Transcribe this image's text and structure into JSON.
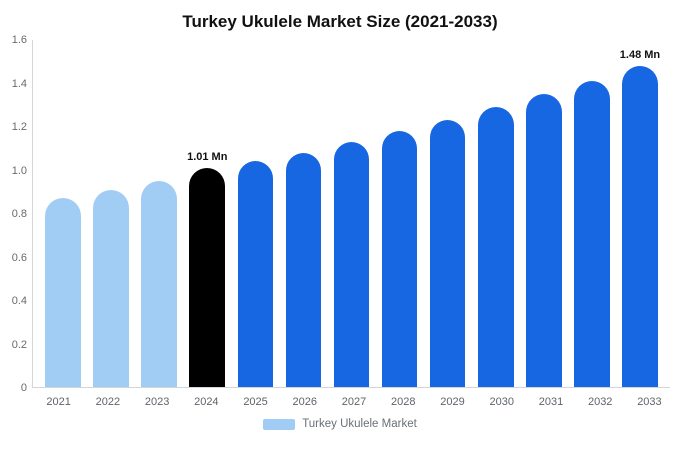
{
  "title": "Turkey Ukulele Market Size (2021-2033)",
  "legend": {
    "label": "Turkey Ukulele Market",
    "swatch_color": "#a1cdf4"
  },
  "colors": {
    "historical_bar": "#a1cdf4",
    "base_year_bar": "#000000",
    "forecast_bar": "#1767e2",
    "axis_line": "#d2d6db",
    "tick_text": "#666a70"
  },
  "chart_data": {
    "type": "bar",
    "title": "Turkey Ukulele Market Size (2021-2033)",
    "categories": [
      "2021",
      "2022",
      "2023",
      "2024",
      "2025",
      "2026",
      "2027",
      "2028",
      "2029",
      "2030",
      "2031",
      "2032",
      "2033"
    ],
    "values": [
      0.87,
      0.91,
      0.95,
      1.01,
      1.04,
      1.08,
      1.13,
      1.18,
      1.23,
      1.29,
      1.35,
      1.41,
      1.48
    ],
    "bar_colors": [
      "#a1cdf4",
      "#a1cdf4",
      "#a1cdf4",
      "#000000",
      "#1767e2",
      "#1767e2",
      "#1767e2",
      "#1767e2",
      "#1767e2",
      "#1767e2",
      "#1767e2",
      "#1767e2",
      "#1767e2"
    ],
    "unit": "Mn",
    "xlabel": "",
    "ylabel": "",
    "ylim": [
      0,
      1.6
    ],
    "ytick_labels": [
      "1.6",
      "1.4",
      "1.2",
      "1.0",
      "0.8",
      "0.6",
      "0.4",
      "0.2",
      "0"
    ],
    "grid": false,
    "legend_position": "bottom",
    "legend_entries": [
      "Turkey Ukulele Market"
    ],
    "annotations": [
      {
        "category": "2024",
        "text": "1.01 Mn"
      },
      {
        "category": "2033",
        "text": "1.48 Mn"
      }
    ]
  }
}
